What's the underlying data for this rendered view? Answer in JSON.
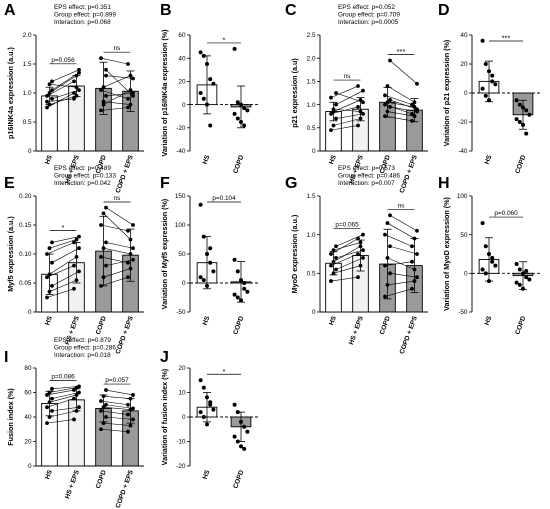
{
  "colors": {
    "hs_fill": "#ffffff",
    "hs_eps_fill": "#f1f1f1",
    "copd_fill": "#9a9a9a",
    "line": "#000000"
  },
  "chart_data": [
    {
      "id": "A",
      "panel_label": "A",
      "type": "bar",
      "ylabel": "p16INK4a expression (a.u.)",
      "ylim": [
        0,
        2
      ],
      "yticks": [
        0,
        0.5,
        1.0,
        1.5,
        2.0
      ],
      "categories": [
        "HS",
        "HS + EPS",
        "COPD",
        "COPD + EPS"
      ],
      "bar_fill": [
        "hs",
        "hs_eps",
        "copd",
        "copd"
      ],
      "values": [
        0.95,
        1.12,
        1.08,
        1.03
      ],
      "errors": [
        0.15,
        0.18,
        0.45,
        0.35
      ],
      "stats_lines": [
        "EPS effect: p=0.351",
        "Group effect: p=0.899",
        "Interaction: p=0.068"
      ],
      "comparisons": [
        {
          "a": 0,
          "b": 1,
          "label": "p=0.056"
        },
        {
          "a": 2,
          "b": 3,
          "label": "ns"
        }
      ],
      "paired": [
        [
          [
            0.75,
            1.0
          ],
          [
            0.8,
            0.95
          ],
          [
            0.9,
            1.05
          ],
          [
            0.95,
            1.2
          ],
          [
            1.0,
            1.3
          ],
          [
            1.05,
            1.35
          ],
          [
            0.85,
            0.9
          ],
          [
            1.15,
            1.1
          ],
          [
            1.2,
            1.4
          ]
        ],
        [
          [
            0.7,
            0.75
          ],
          [
            0.85,
            0.8
          ],
          [
            0.95,
            1.0
          ],
          [
            1.05,
            0.9
          ],
          [
            1.1,
            1.3
          ],
          [
            1.3,
            1.25
          ],
          [
            1.6,
            1.5
          ],
          [
            0.8,
            1.05
          ],
          [
            1.4,
            0.95
          ]
        ]
      ]
    },
    {
      "id": "B",
      "panel_label": "B",
      "type": "bar",
      "ylabel": "Variation of p16INK4a expression (%)",
      "ylim": [
        -40,
        60
      ],
      "yticks": [
        -40,
        -20,
        0,
        20,
        40,
        60
      ],
      "categories": [
        "HS",
        "COPD"
      ],
      "bar_fill": [
        "hs",
        "copd"
      ],
      "values": [
        17,
        -2
      ],
      "errors": [
        25,
        18
      ],
      "stats_lines": [],
      "comparisons": [
        {
          "a": 0,
          "b": 1,
          "label": "*"
        }
      ],
      "points": [
        [
          45,
          42,
          35,
          22,
          18,
          10,
          5,
          0,
          -18
        ],
        [
          48,
          2,
          0,
          -3,
          -5,
          -8,
          -12,
          -15,
          -18
        ]
      ]
    },
    {
      "id": "C",
      "panel_label": "C",
      "type": "bar",
      "ylabel": "p21 expression (a.u)",
      "ylim": [
        0,
        2.5
      ],
      "yticks": [
        0,
        0.5,
        1.0,
        1.5,
        2.0,
        2.5
      ],
      "categories": [
        "HS",
        "HS + EPS",
        "COPD",
        "COPD + EPS"
      ],
      "bar_fill": [
        "hs",
        "hs_eps",
        "copd",
        "copd"
      ],
      "values": [
        0.85,
        0.9,
        1.05,
        0.88
      ],
      "errors": [
        0.2,
        0.25,
        0.32,
        0.25
      ],
      "stats_lines": [
        "EPS effect: p=0.052",
        "Group effect: p=0.709",
        "Interaction: p=0.0005"
      ],
      "comparisons": [
        {
          "a": 0,
          "b": 1,
          "label": "ns"
        },
        {
          "a": 2,
          "b": 3,
          "label": "***"
        }
      ],
      "paired": [
        [
          [
            0.45,
            0.55
          ],
          [
            0.55,
            0.7
          ],
          [
            0.7,
            0.8
          ],
          [
            0.8,
            0.95
          ],
          [
            0.85,
            1.1
          ],
          [
            1.0,
            1.3
          ],
          [
            1.15,
            1.4
          ],
          [
            0.9,
            0.85
          ],
          [
            1.25,
            1.05
          ]
        ],
        [
          [
            0.75,
            0.65
          ],
          [
            0.85,
            0.75
          ],
          [
            0.95,
            0.85
          ],
          [
            1.0,
            0.8
          ],
          [
            1.05,
            0.95
          ],
          [
            1.1,
            0.9
          ],
          [
            1.2,
            1.0
          ],
          [
            1.4,
            1.05
          ],
          [
            1.95,
            1.45
          ]
        ]
      ]
    },
    {
      "id": "D",
      "panel_label": "D",
      "type": "bar",
      "ylabel": "Variation of p21 expression (%)",
      "ylim": [
        -40,
        40
      ],
      "yticks": [
        -40,
        -20,
        0,
        20,
        40
      ],
      "categories": [
        "HS",
        "COPD"
      ],
      "bar_fill": [
        "hs",
        "copd"
      ],
      "values": [
        8,
        -15
      ],
      "errors": [
        14,
        10
      ],
      "stats_lines": [],
      "comparisons": [
        {
          "a": 0,
          "b": 1,
          "label": "***"
        }
      ],
      "points": [
        [
          36,
          20,
          15,
          8,
          6,
          3,
          -2,
          -5,
          12
        ],
        [
          -5,
          -8,
          -10,
          -12,
          -15,
          -18,
          -20,
          -22,
          -28
        ]
      ]
    },
    {
      "id": "E",
      "panel_label": "E",
      "type": "bar",
      "ylabel": "Myf5 expression (a.u.)",
      "ylim": [
        0,
        0.2
      ],
      "yticks": [
        0,
        0.05,
        0.1,
        0.15,
        0.2
      ],
      "categories": [
        "HS",
        "HS + EPS",
        "COPD",
        "COPD + EPS"
      ],
      "bar_fill": [
        "hs",
        "hs_eps",
        "copd",
        "copd"
      ],
      "values": [
        0.065,
        0.085,
        0.105,
        0.098
      ],
      "errors": [
        0.035,
        0.035,
        0.06,
        0.045
      ],
      "stats_lines": [
        "EPS effect: p=0.489",
        "Group effect: p=0.133",
        "Interaction: p=0.042"
      ],
      "comparisons": [
        {
          "a": 0,
          "b": 1,
          "label": "*"
        },
        {
          "a": 2,
          "b": 3,
          "label": "ns"
        }
      ],
      "paired": [
        [
          [
            0.025,
            0.04
          ],
          [
            0.035,
            0.055
          ],
          [
            0.045,
            0.07
          ],
          [
            0.06,
            0.08
          ],
          [
            0.065,
            0.095
          ],
          [
            0.085,
            0.11
          ],
          [
            0.1,
            0.12
          ],
          [
            0.11,
            0.125
          ],
          [
            0.12,
            0.13
          ]
        ],
        [
          [
            0.045,
            0.06
          ],
          [
            0.06,
            0.075
          ],
          [
            0.08,
            0.09
          ],
          [
            0.095,
            0.085
          ],
          [
            0.11,
            0.1
          ],
          [
            0.12,
            0.11
          ],
          [
            0.15,
            0.14
          ],
          [
            0.17,
            0.125
          ],
          [
            0.18,
            0.15
          ]
        ]
      ]
    },
    {
      "id": "F",
      "panel_label": "F",
      "type": "bar",
      "ylabel": "Variation of Myf5 expression (%)",
      "ylim": [
        -50,
        150
      ],
      "yticks": [
        -50,
        0,
        50,
        100,
        150
      ],
      "categories": [
        "HS",
        "COPD"
      ],
      "bar_fill": [
        "hs",
        "copd"
      ],
      "values": [
        35,
        2
      ],
      "errors": [
        45,
        35
      ],
      "stats_lines": [],
      "comparisons": [
        {
          "a": 0,
          "b": 1,
          "label": "p=0.104"
        }
      ],
      "points": [
        [
          135,
          80,
          50,
          35,
          20,
          10,
          5,
          -5,
          60
        ],
        [
          40,
          20,
          5,
          -10,
          -15,
          -20,
          -25,
          -30,
          0
        ]
      ]
    },
    {
      "id": "G",
      "panel_label": "G",
      "type": "bar",
      "ylabel": "MyoD expression (a.u.)",
      "ylim": [
        0,
        1.5
      ],
      "yticks": [
        0,
        0.5,
        1.0,
        1.5
      ],
      "categories": [
        "HS",
        "HS + EPS",
        "COPD",
        "COPD + EPS"
      ],
      "bar_fill": [
        "hs",
        "hs_eps",
        "copd",
        "copd"
      ],
      "values": [
        0.63,
        0.73,
        0.62,
        0.6
      ],
      "errors": [
        0.15,
        0.2,
        0.45,
        0.35
      ],
      "stats_lines": [
        "EPS effect: p=0.573",
        "Group effect: p=0.486",
        "Interaction: p=0.007"
      ],
      "comparisons": [
        {
          "a": 0,
          "b": 1,
          "label": "p=0.065"
        },
        {
          "a": 2,
          "b": 3,
          "label": "ns"
        }
      ],
      "paired": [
        [
          [
            0.4,
            0.45
          ],
          [
            0.5,
            0.6
          ],
          [
            0.55,
            0.7
          ],
          [
            0.6,
            0.75
          ],
          [
            0.65,
            0.85
          ],
          [
            0.7,
            0.8
          ],
          [
            0.75,
            0.95
          ],
          [
            0.8,
            0.9
          ],
          [
            0.85,
            1.0
          ]
        ],
        [
          [
            0.2,
            0.3
          ],
          [
            0.35,
            0.4
          ],
          [
            0.5,
            0.45
          ],
          [
            0.6,
            0.65
          ],
          [
            0.7,
            0.55
          ],
          [
            0.85,
            0.75
          ],
          [
            1.0,
            0.85
          ],
          [
            1.15,
            0.95
          ],
          [
            1.25,
            1.05
          ]
        ]
      ]
    },
    {
      "id": "H",
      "panel_label": "H",
      "type": "bar",
      "ylabel": "Variation of MyoD expression (%)",
      "ylim": [
        -50,
        100
      ],
      "yticks": [
        -50,
        0,
        50,
        100
      ],
      "categories": [
        "HS",
        "COPD"
      ],
      "bar_fill": [
        "hs",
        "copd"
      ],
      "values": [
        18,
        -3
      ],
      "errors": [
        28,
        18
      ],
      "stats_lines": [],
      "comparisons": [
        {
          "a": 0,
          "b": 1,
          "label": "p=0.060"
        }
      ],
      "points": [
        [
          65,
          35,
          25,
          15,
          10,
          5,
          0,
          -10,
          20
        ],
        [
          12,
          5,
          0,
          -5,
          -8,
          -12,
          -15,
          -20,
          3
        ]
      ]
    },
    {
      "id": "I",
      "panel_label": "I",
      "type": "bar",
      "ylabel": "Fusion index (%)",
      "ylim": [
        0,
        80
      ],
      "yticks": [
        0,
        20,
        40,
        60,
        80
      ],
      "categories": [
        "HS",
        "HS + EPS",
        "COPD",
        "COPD + EPS"
      ],
      "bar_fill": [
        "hs",
        "hs_eps",
        "copd",
        "copd"
      ],
      "values": [
        51,
        54,
        47,
        45
      ],
      "errors": [
        10,
        9,
        11,
        10
      ],
      "stats_lines": [
        "EPS effect: p=0.879",
        "Group effect: p=0.286",
        "Interaction: p=0.018"
      ],
      "comparisons": [
        {
          "a": 0,
          "b": 1,
          "label": "p=0.086"
        },
        {
          "a": 2,
          "b": 3,
          "label": "p=0.057"
        }
      ],
      "paired": [
        [
          [
            35,
            38
          ],
          [
            40,
            45
          ],
          [
            45,
            48
          ],
          [
            48,
            55
          ],
          [
            52,
            58
          ],
          [
            55,
            60
          ],
          [
            58,
            62
          ],
          [
            60,
            64
          ],
          [
            63,
            65
          ]
        ],
        [
          [
            30,
            28
          ],
          [
            35,
            33
          ],
          [
            40,
            38
          ],
          [
            45,
            42
          ],
          [
            48,
            46
          ],
          [
            50,
            47
          ],
          [
            53,
            50
          ],
          [
            57,
            55
          ],
          [
            62,
            58
          ]
        ]
      ]
    },
    {
      "id": "J",
      "panel_label": "J",
      "type": "bar",
      "ylabel": "Variation of fusion index (%)",
      "ylim": [
        -20,
        20
      ],
      "yticks": [
        -20,
        -10,
        0,
        10,
        20
      ],
      "categories": [
        "HS",
        "COPD"
      ],
      "bar_fill": [
        "hs",
        "copd"
      ],
      "values": [
        4,
        -4
      ],
      "errors": [
        6,
        6
      ],
      "stats_lines": [],
      "comparisons": [
        {
          "a": 0,
          "b": 1,
          "label": "*"
        }
      ],
      "points": [
        [
          15,
          12,
          8,
          5,
          3,
          2,
          0,
          -3,
          6
        ],
        [
          5,
          2,
          -2,
          -4,
          -6,
          -8,
          -10,
          -12,
          -13
        ]
      ]
    }
  ]
}
